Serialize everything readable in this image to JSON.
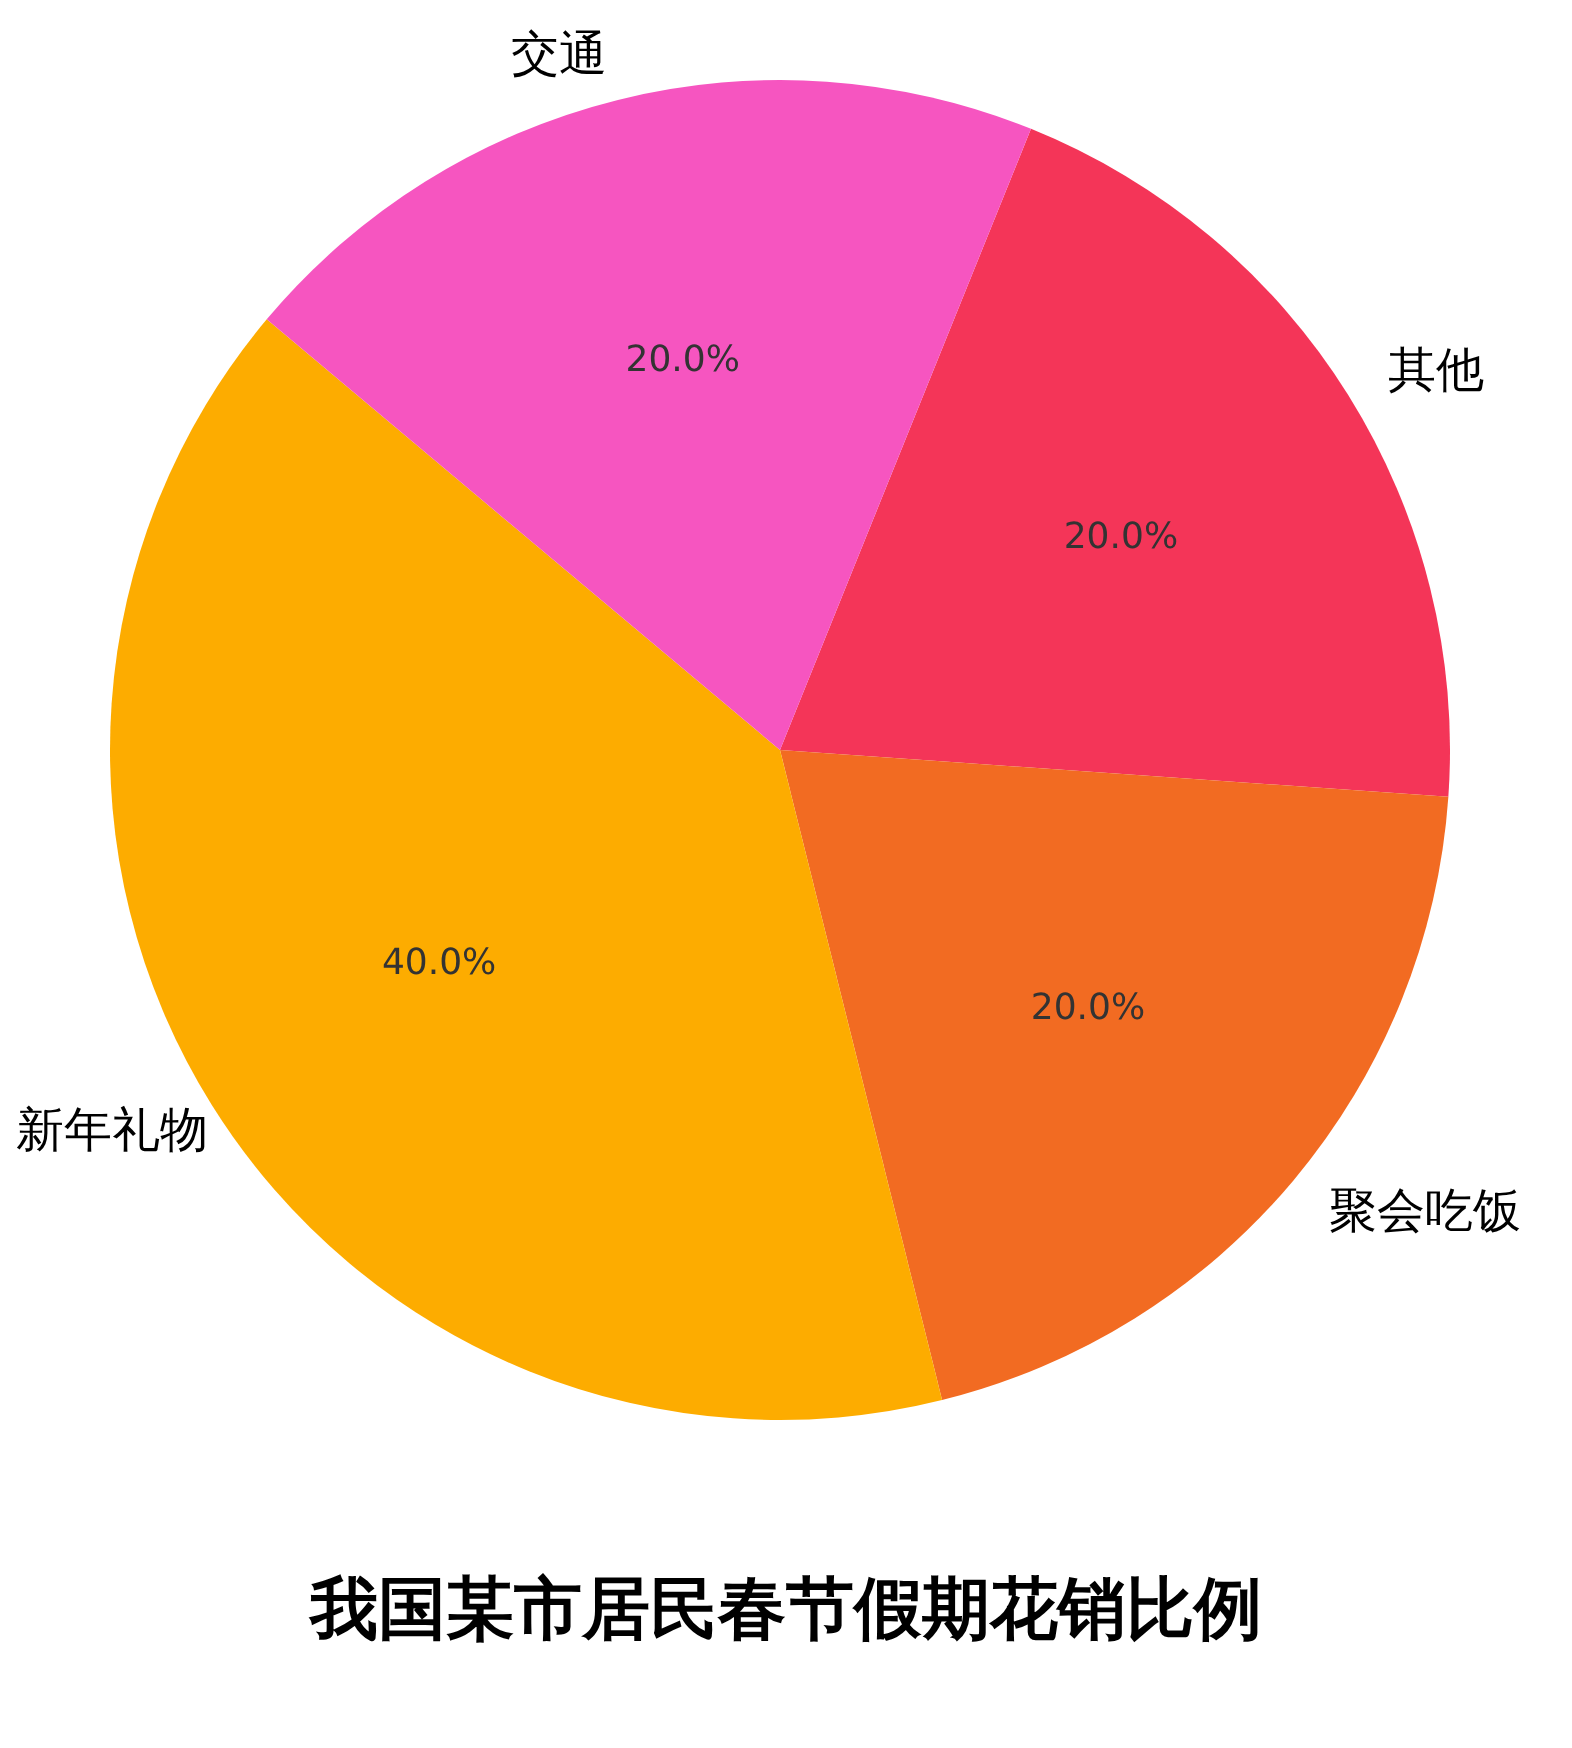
{
  "chart_data": {
    "type": "pie",
    "title": "我国某市居民春节假期花销比例",
    "categories": [
      "其他",
      "聚会吃饭",
      "新年礼物",
      "交通"
    ],
    "values": [
      20,
      20,
      40,
      20
    ],
    "colors": [
      "#f43558",
      "#f26b22",
      "#fdac00",
      "#f655c0"
    ],
    "value_labels": [
      "20.0%",
      "20.0%",
      "40.0%",
      "20.0%"
    ]
  }
}
